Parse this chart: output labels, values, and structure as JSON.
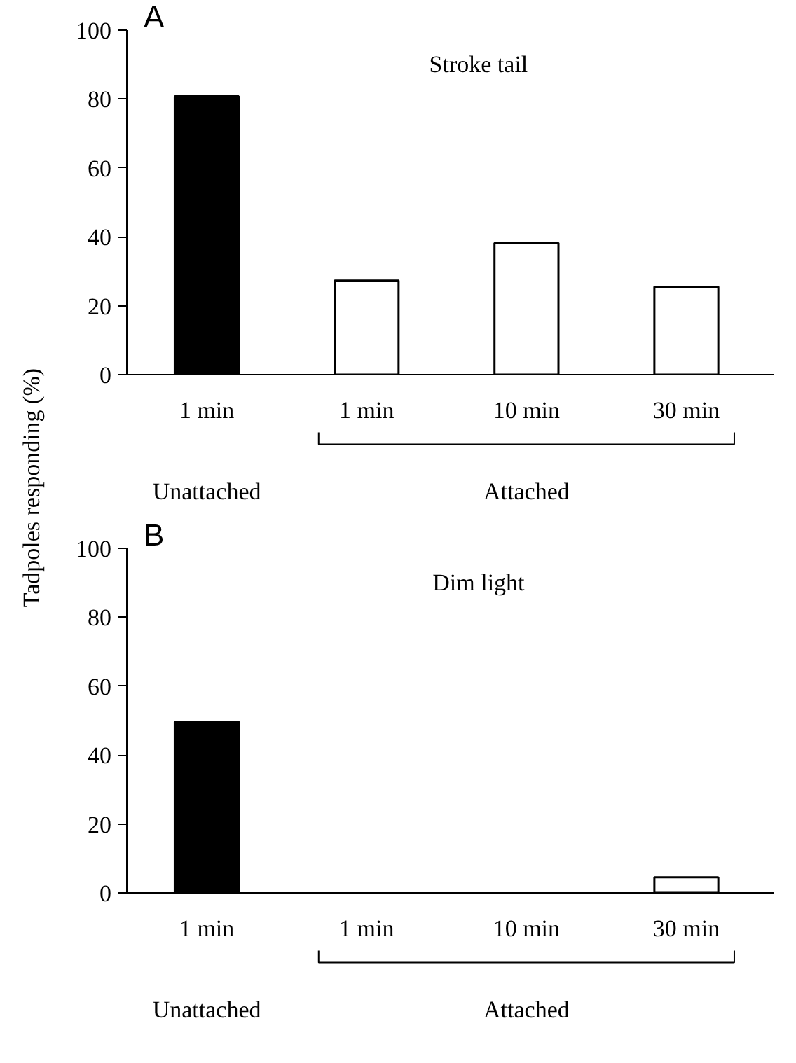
{
  "chart_data": [
    {
      "type": "bar",
      "title": "A",
      "categories": [
        "1 min",
        "1 min",
        "10 min",
        "30 min"
      ],
      "values": [
        80.8,
        27.3,
        38.2,
        25.5
      ],
      "colors": [
        "#000000",
        "#ffffff",
        "#ffffff",
        "#ffffff"
      ],
      "ylim": [
        0,
        100
      ],
      "yticks": [
        0,
        20,
        40,
        60,
        80,
        100
      ],
      "ylabel": "Tadpoles responding (%)",
      "annotations": [
        "Stroke tail",
        "Unattached",
        "Attached"
      ]
    },
    {
      "type": "bar",
      "title": "B",
      "categories": [
        "1 min",
        "1 min",
        "10 min",
        "30 min"
      ],
      "values": [
        49.7,
        0,
        0,
        4.5
      ],
      "colors": [
        "#000000",
        "#ffffff",
        "#ffffff",
        "#ffffff"
      ],
      "ylim": [
        0,
        100
      ],
      "yticks": [
        0,
        20,
        40,
        60,
        80,
        100
      ],
      "annotations": [
        "Dim light",
        "Unattached",
        "Attached"
      ]
    }
  ]
}
